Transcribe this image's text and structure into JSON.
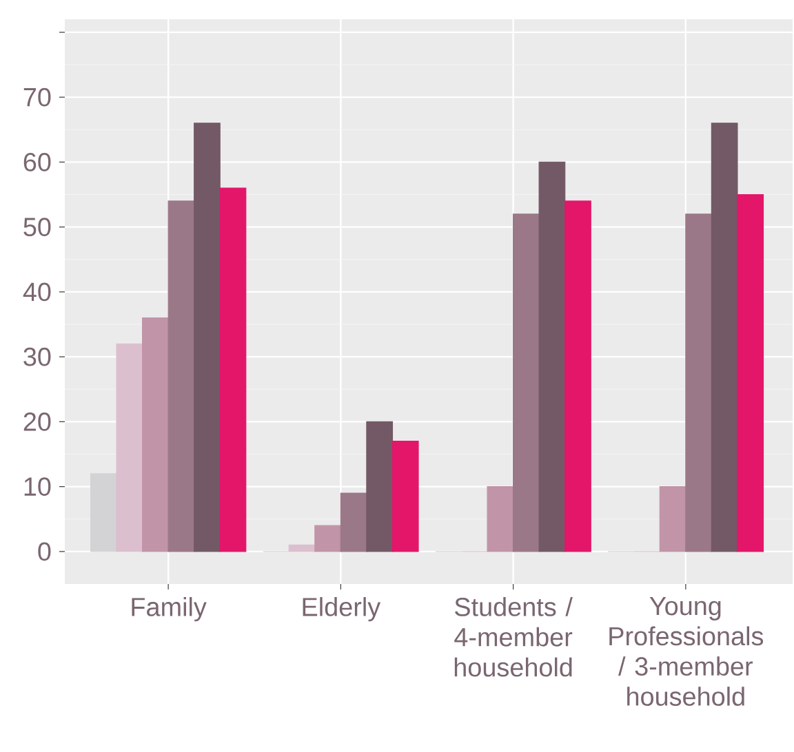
{
  "chart_data": {
    "type": "bar",
    "categories": [
      "Family",
      "Elderly",
      "Students / 4-member household",
      "Young Professionals / 3-member household"
    ],
    "series": [
      {
        "color": "#d3d3d5",
        "values": [
          12,
          0,
          0,
          0
        ]
      },
      {
        "color": "#dcbfcf",
        "values": [
          32,
          1,
          0,
          0
        ]
      },
      {
        "color": "#c194a8",
        "values": [
          36,
          4,
          10,
          10
        ]
      },
      {
        "color": "#9b7888",
        "values": [
          54,
          9,
          52,
          52
        ]
      },
      {
        "color": "#735966",
        "values": [
          66,
          20,
          60,
          66
        ]
      },
      {
        "color": "#e3166a",
        "values": [
          56,
          17,
          54,
          55
        ]
      }
    ],
    "ylim": [
      -5,
      82
    ],
    "yticks": [
      0,
      10,
      20,
      30,
      40,
      50,
      60,
      70,
      {
        "value": 80,
        "label": null
      }
    ],
    "grid": true
  }
}
